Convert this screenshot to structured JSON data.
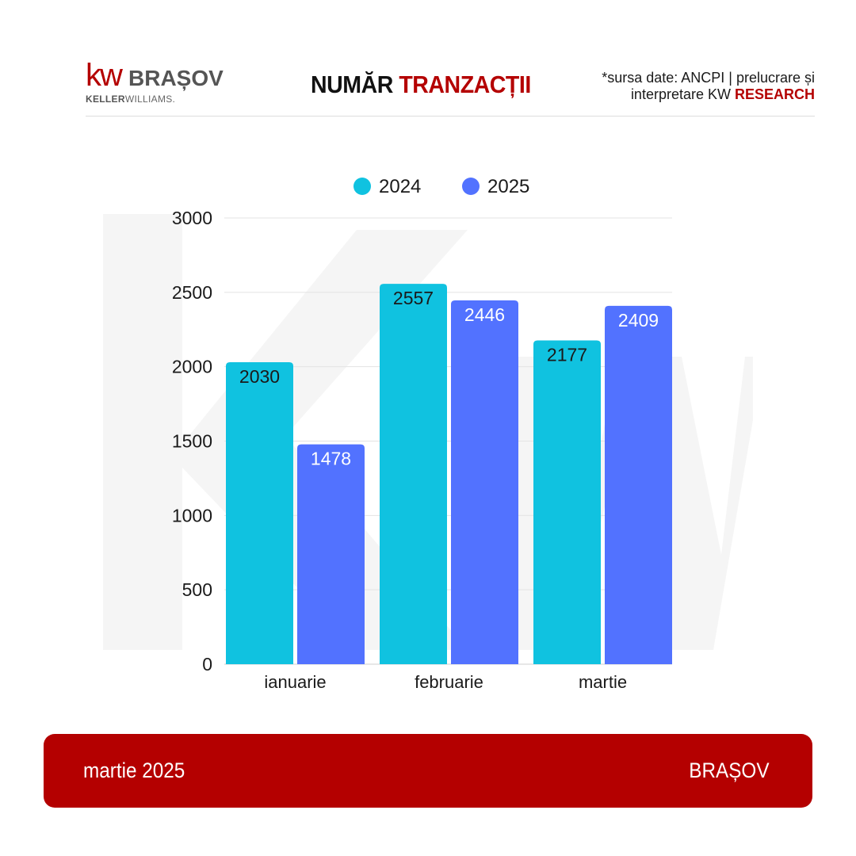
{
  "header": {
    "logo_kw": "kw",
    "logo_city": "BRAȘOV",
    "logo_sub_bold": "KELLER",
    "logo_sub_rest": "WILLIAMS.",
    "title_part1": "NUMĂR ",
    "title_part2": "TRANZACȚII",
    "source_line1": "*sursa date: ANCPI  |  prelucrare și",
    "source_line2_prefix": "interpretare  KW ",
    "source_line2_accent": "RESEARCH"
  },
  "chart_data": {
    "type": "bar",
    "categories": [
      "ianuarie",
      "februarie",
      "martie"
    ],
    "series": [
      {
        "name": "2024",
        "values": [
          2030,
          2557,
          2177
        ],
        "color": "#10c2e0",
        "label_color": "#1a1a1a"
      },
      {
        "name": "2025",
        "values": [
          1478,
          2446,
          2409
        ],
        "color": "#5272ff",
        "label_color": "#ffffff"
      }
    ],
    "ylim": [
      0,
      3000
    ],
    "yticks": [
      0,
      500,
      1000,
      1500,
      2000,
      2500,
      3000
    ],
    "grid": true,
    "legend_position": "top-center",
    "data_labels": true
  },
  "footer": {
    "left": "martie 2025",
    "right": "BRAȘOV",
    "background": "#b40000"
  },
  "colors": {
    "accent": "#b40000"
  }
}
